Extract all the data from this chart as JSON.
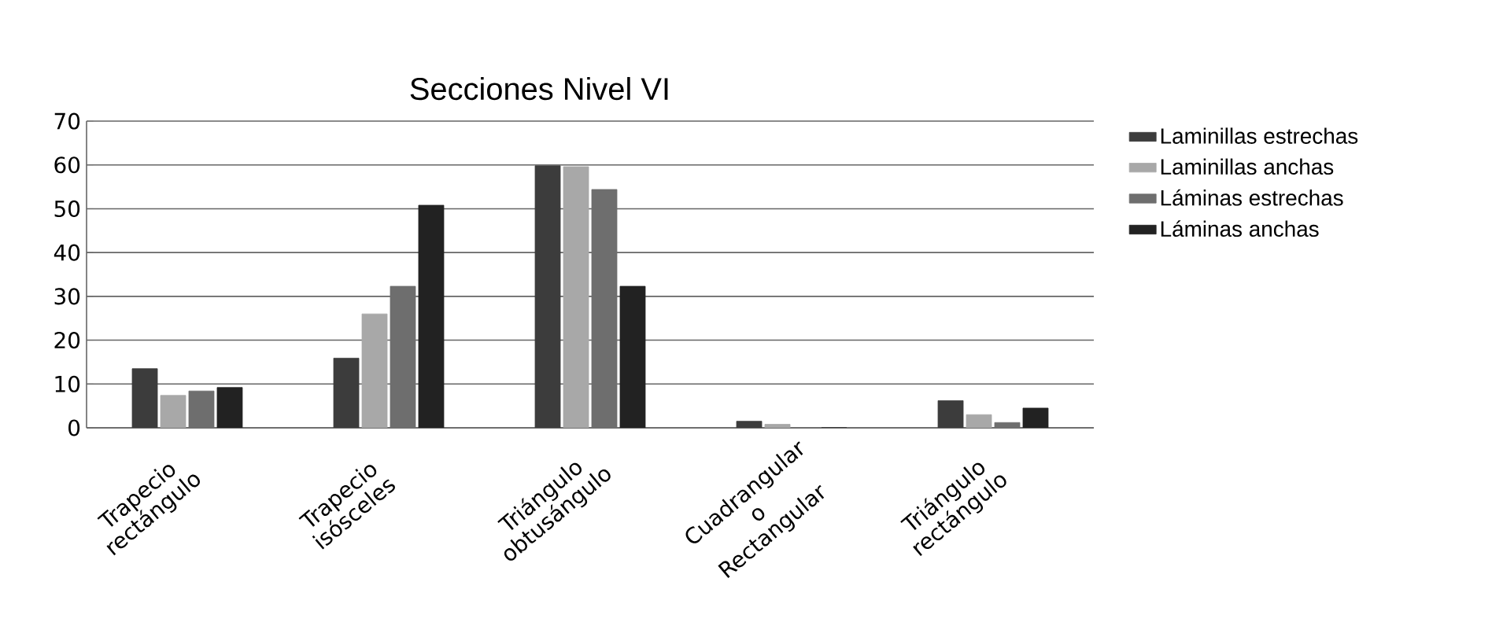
{
  "chart_data": {
    "type": "bar",
    "title": "Secciones Nivel VI",
    "categories": [
      "Trapecio rectángulo",
      "Trapecio isósceles",
      "Triángulo obtusángulo",
      "Cuadrangular o Rectangular",
      "Triángulo rectángulo"
    ],
    "series": [
      {
        "name": "Laminillas estrechas",
        "color": "#3c3c3c",
        "values": [
          13.5,
          15.9,
          59.8,
          1.5,
          6.2
        ]
      },
      {
        "name": "Laminillas anchas",
        "color": "#a8a8a8",
        "values": [
          7.4,
          26,
          59.6,
          0.8,
          3
        ]
      },
      {
        "name": "Láminas estrechas",
        "color": "#6e6e6e",
        "values": [
          8.4,
          32.3,
          54.4,
          null,
          1.2
        ]
      },
      {
        "name": "Láminas anchas",
        "color": "#222222",
        "values": [
          9.2,
          50.8,
          32.3,
          0,
          4.5
        ]
      }
    ],
    "ylim": [
      0,
      70
    ],
    "yticks": [
      0,
      10,
      20,
      30,
      40,
      50,
      60,
      70
    ],
    "grid": "y",
    "legend": "right"
  }
}
